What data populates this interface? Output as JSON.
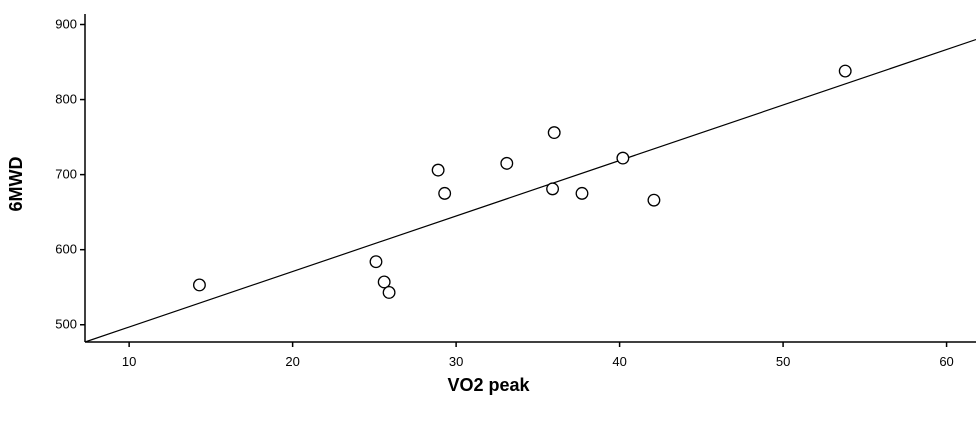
{
  "chart_data": {
    "type": "scatter",
    "xlabel": "VO2 peak",
    "ylabel": "6MWD",
    "xlim": [
      7.3,
      61.8
    ],
    "ylim": [
      477,
      914
    ],
    "x_ticks": [
      10,
      20,
      30,
      40,
      50,
      60
    ],
    "y_ticks": [
      500,
      600,
      700,
      800,
      900
    ],
    "grid": false,
    "points": [
      {
        "x": 14.3,
        "y": 553
      },
      {
        "x": 25.1,
        "y": 584
      },
      {
        "x": 25.6,
        "y": 557
      },
      {
        "x": 25.9,
        "y": 543
      },
      {
        "x": 28.9,
        "y": 706
      },
      {
        "x": 29.3,
        "y": 675
      },
      {
        "x": 33.1,
        "y": 715
      },
      {
        "x": 35.9,
        "y": 681
      },
      {
        "x": 36.0,
        "y": 756
      },
      {
        "x": 37.7,
        "y": 675
      },
      {
        "x": 40.2,
        "y": 722
      },
      {
        "x": 42.1,
        "y": 666
      },
      {
        "x": 53.8,
        "y": 838
      }
    ],
    "fit_line": {
      "x": [
        7.3,
        61.8
      ],
      "y": [
        477,
        880
      ]
    }
  }
}
